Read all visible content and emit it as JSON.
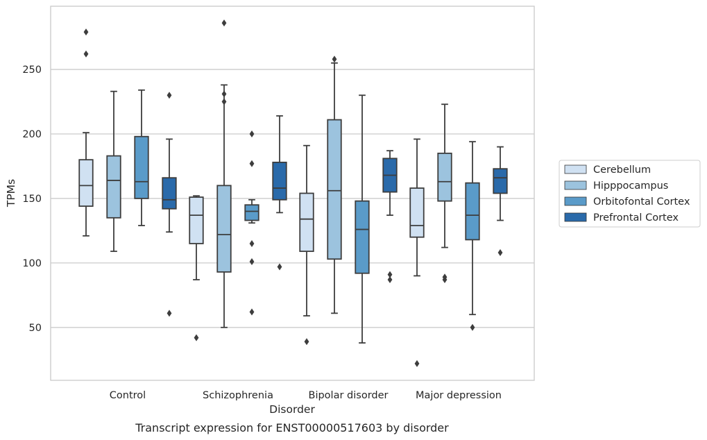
{
  "chart_data": {
    "type": "box",
    "caption": "Transcript expression for ENST00000517603 by disorder",
    "xlabel": "Disorder",
    "ylabel": "TPMs",
    "ylim": [
      9,
      299
    ],
    "yticks": [
      50,
      100,
      150,
      200,
      250
    ],
    "grid": "horizontal",
    "legend_position": "right",
    "categories": [
      "Control",
      "Schizophrenia",
      "Bipolar disorder",
      "Major depression"
    ],
    "series": [
      {
        "name": "Cerebellum",
        "color": "#d0e1f2",
        "boxes": [
          {
            "whisker_low": 121,
            "q1": 144,
            "median": 160,
            "q3": 180,
            "whisker_high": 201,
            "outliers": [
              279,
              262
            ]
          },
          {
            "whisker_low": 87,
            "q1": 115,
            "median": 137,
            "q3": 151,
            "whisker_high": 152,
            "outliers": [
              42
            ]
          },
          {
            "whisker_low": 59,
            "q1": 109,
            "median": 134,
            "q3": 154,
            "whisker_high": 191,
            "outliers": [
              39
            ]
          },
          {
            "whisker_low": 90,
            "q1": 120,
            "median": 129,
            "q3": 158,
            "whisker_high": 196,
            "outliers": [
              22
            ]
          }
        ]
      },
      {
        "name": "Hipppocampus",
        "color": "#9cc3de",
        "boxes": [
          {
            "whisker_low": 109,
            "q1": 135,
            "median": 164,
            "q3": 183,
            "whisker_high": 233,
            "outliers": []
          },
          {
            "whisker_low": 50,
            "q1": 93,
            "median": 122,
            "q3": 160,
            "whisker_high": 238,
            "outliers": [
              286,
              231,
              225
            ]
          },
          {
            "whisker_low": 61,
            "q1": 103,
            "median": 156,
            "q3": 211,
            "whisker_high": 255,
            "outliers": [
              258
            ]
          },
          {
            "whisker_low": 112,
            "q1": 148,
            "median": 163,
            "q3": 185,
            "whisker_high": 223,
            "outliers": [
              89,
              87
            ]
          }
        ]
      },
      {
        "name": "Orbitofontal Cortex",
        "color": "#5a9bc9",
        "boxes": [
          {
            "whisker_low": 129,
            "q1": 150,
            "median": 163,
            "q3": 198,
            "whisker_high": 234,
            "outliers": []
          },
          {
            "whisker_low": 131,
            "q1": 133,
            "median": 140,
            "q3": 145,
            "whisker_high": 149,
            "outliers": [
              200,
              177,
              115,
              101,
              62
            ]
          },
          {
            "whisker_low": 38,
            "q1": 92,
            "median": 126,
            "q3": 148,
            "whisker_high": 230,
            "outliers": []
          },
          {
            "whisker_low": 60,
            "q1": 118,
            "median": 137,
            "q3": 162,
            "whisker_high": 194,
            "outliers": [
              50
            ]
          }
        ]
      },
      {
        "name": "Prefrontal Cortex",
        "color": "#2a6aaa",
        "boxes": [
          {
            "whisker_low": 124,
            "q1": 142,
            "median": 149,
            "q3": 166,
            "whisker_high": 196,
            "outliers": [
              230,
              61
            ]
          },
          {
            "whisker_low": 139,
            "q1": 149,
            "median": 158,
            "q3": 178,
            "whisker_high": 214,
            "outliers": [
              97
            ]
          },
          {
            "whisker_low": 137,
            "q1": 155,
            "median": 168,
            "q3": 181,
            "whisker_high": 187,
            "outliers": [
              91,
              87
            ]
          },
          {
            "whisker_low": 133,
            "q1": 154,
            "median": 166,
            "q3": 173,
            "whisker_high": 190,
            "outliers": [
              108
            ]
          }
        ]
      }
    ]
  },
  "colors": {
    "background": "#ffffff",
    "grid": "#cccccc",
    "frame": "#cccccc",
    "lines": "#3d3d3d",
    "text": "#262626"
  }
}
